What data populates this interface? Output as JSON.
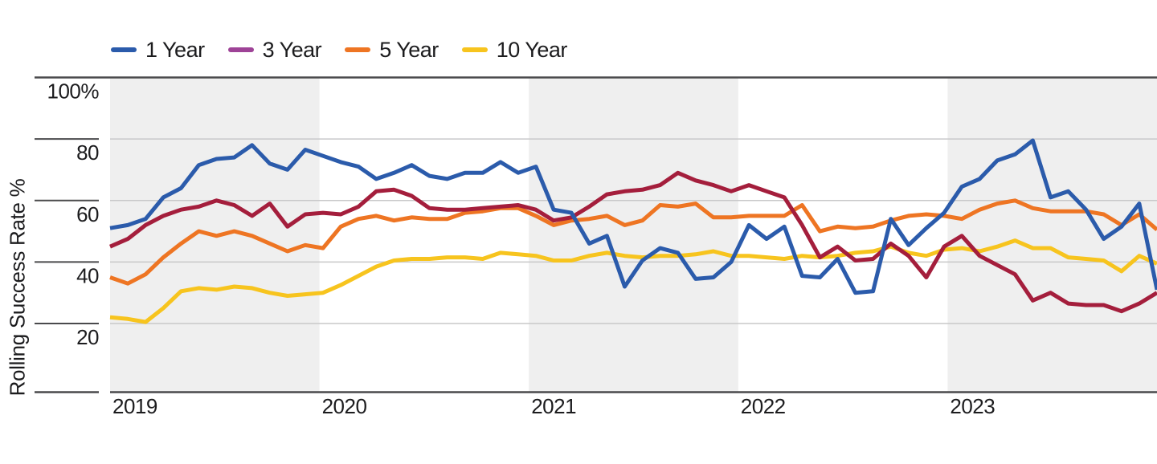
{
  "chart_data": {
    "type": "line",
    "title": "",
    "ylabel": "Rolling Success Rate %",
    "x_years": [
      "2019",
      "2020",
      "2021",
      "2022",
      "2023"
    ],
    "x_note": "monthly points, Jan 2019 - Dec 2023",
    "ylim": [
      0,
      102
    ],
    "yticks": [
      {
        "v": 100,
        "label": "100%"
      },
      {
        "v": 80,
        "label": "80"
      },
      {
        "v": 60,
        "label": "60"
      },
      {
        "v": 40,
        "label": "40"
      },
      {
        "v": 20,
        "label": "20"
      }
    ],
    "legend_position": "top-left",
    "grid": "horizontal",
    "band_shading": "alternating-year-bands",
    "series": [
      {
        "name": "1 Year",
        "color": "#2B5BAB",
        "legend_swatch": "#2B5BAB",
        "values": [
          51,
          52,
          54,
          61,
          64,
          71.5,
          73.5,
          74,
          78,
          72,
          70,
          76.5,
          74.5,
          72.5,
          71,
          67,
          69,
          71.5,
          68,
          67,
          69,
          69,
          72.5,
          69,
          71,
          57,
          56,
          46,
          48.5,
          32,
          40.5,
          44.5,
          43,
          34.5,
          35,
          40,
          52,
          47.5,
          51.5,
          35.5,
          35,
          41,
          30,
          30.5,
          54,
          45.5,
          51,
          56,
          64.5,
          67,
          73,
          75,
          79.5,
          61,
          63,
          57,
          47.5,
          51.5,
          59,
          31
        ]
      },
      {
        "name": "3 Year",
        "color": "#A41E3C",
        "legend_swatch": "#9E4397",
        "values": [
          45,
          47.5,
          52,
          55,
          57,
          58,
          60,
          58.5,
          55,
          59,
          51.5,
          55.5,
          56,
          55.5,
          58,
          63,
          63.5,
          61.5,
          57.5,
          57,
          57,
          57.5,
          58,
          58.5,
          57,
          53.5,
          54.5,
          58,
          62,
          63,
          63.5,
          65,
          69,
          66.5,
          65,
          63,
          65,
          63,
          61,
          52,
          41.5,
          45,
          40.5,
          41,
          46,
          42,
          35,
          45,
          48.5,
          42,
          39,
          36,
          27.5,
          30,
          26.5,
          26,
          26,
          24,
          26.5,
          30
        ]
      },
      {
        "name": "5 Year",
        "color": "#EE7523",
        "legend_swatch": "#EE7523",
        "values": [
          35,
          33,
          36,
          41.5,
          46,
          50,
          48.5,
          50,
          48.5,
          46,
          43.5,
          45.5,
          44.5,
          51.5,
          54,
          55,
          53.5,
          54.5,
          54,
          54,
          56,
          56.5,
          57.5,
          57.5,
          55,
          52,
          53.5,
          54,
          55,
          52,
          53.5,
          58.5,
          58,
          59,
          54.5,
          54.5,
          55,
          55,
          55,
          58.5,
          50,
          51.5,
          51,
          51.5,
          53.5,
          55,
          55.5,
          55,
          54,
          57,
          59,
          60,
          57.5,
          56.5,
          56.5,
          56.5,
          55.5,
          52,
          55.5,
          50.5
        ]
      },
      {
        "name": "10 Year",
        "color": "#F7C41E",
        "legend_swatch": "#F7C41E",
        "values": [
          22,
          21.5,
          20.5,
          25,
          30.5,
          31.5,
          31,
          32,
          31.5,
          30,
          29,
          29.5,
          30,
          32.5,
          35.5,
          38.5,
          40.5,
          41,
          41,
          41.5,
          41.5,
          41,
          43,
          42.5,
          42,
          40.5,
          40.5,
          42,
          43,
          42,
          41.5,
          42,
          42,
          42.5,
          43.5,
          42,
          42,
          41.5,
          41,
          42,
          41.5,
          42,
          43,
          43.5,
          45,
          43,
          42,
          44,
          44.5,
          43.5,
          45,
          47,
          44.5,
          44.5,
          41.5,
          41,
          40.5,
          37,
          42,
          39.5
        ]
      }
    ],
    "palette": {
      "band": "#EFEFEF",
      "gridline": "#C8C8C9",
      "axis": "#4A4A4C",
      "text": "#1C1C1E"
    }
  }
}
